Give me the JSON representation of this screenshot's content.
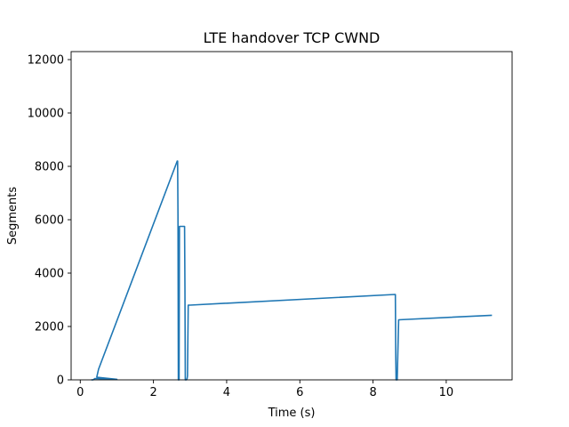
{
  "chart_data": {
    "type": "line",
    "title": "LTE handover TCP CWND",
    "xlabel": "Time (s)",
    "ylabel": "Segments",
    "xlim": [
      -0.25,
      11.8
    ],
    "ylim": [
      0,
      12300
    ],
    "xticks": [
      0,
      2,
      4,
      6,
      8,
      10
    ],
    "yticks": [
      0,
      2000,
      4000,
      6000,
      8000,
      10000,
      12000
    ],
    "grid": false,
    "legend": "none",
    "series": [
      {
        "color": "#1f77b4",
        "x": [
          0.3,
          0.35,
          0.4,
          1.0,
          0.45,
          0.5,
          2.65,
          2.66,
          2.67,
          2.68,
          2.7,
          2.71,
          2.72,
          2.75,
          2.8,
          2.82,
          2.85,
          2.86,
          2.87,
          2.9,
          2.92,
          2.93,
          2.95,
          3.0,
          8.6,
          8.61,
          8.62,
          8.63,
          8.66,
          8.7,
          11.25
        ],
        "y": [
          0,
          0,
          50,
          20,
          100,
          400,
          8200,
          8200,
          6200,
          0,
          0,
          5750,
          5750,
          5750,
          5750,
          5750,
          5750,
          3500,
          0,
          0,
          50,
          150,
          2800,
          2800,
          3200,
          3200,
          1000,
          0,
          0,
          2250,
          2420
        ]
      }
    ]
  }
}
